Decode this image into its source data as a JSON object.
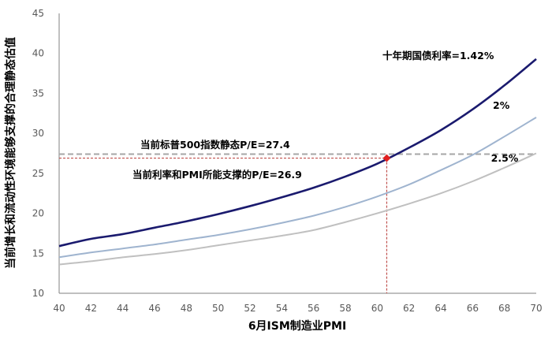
{
  "chart_data": {
    "type": "line",
    "xlabel": "6月ISM制造业PMI",
    "ylabel": "当前增长和流动性环境能够支撑的合理静态估值",
    "xlim": [
      40,
      70
    ],
    "ylim": [
      10,
      45
    ],
    "x_ticks": [
      40,
      42,
      44,
      46,
      48,
      50,
      52,
      54,
      56,
      58,
      60,
      62,
      64,
      66,
      68,
      70
    ],
    "y_ticks": [
      10,
      15,
      20,
      25,
      30,
      35,
      40,
      45
    ],
    "grid": false,
    "series": [
      {
        "name": "十年期国债利率=1.42%",
        "color": "#1a1a6e",
        "x": [
          40,
          42,
          44,
          46,
          48,
          50,
          52,
          54,
          56,
          58,
          60,
          62,
          64,
          66,
          68,
          70
        ],
        "y": [
          15.9,
          16.8,
          17.4,
          18.2,
          19.0,
          19.9,
          20.9,
          22.0,
          23.2,
          24.6,
          26.2,
          28.2,
          30.4,
          33.0,
          36.0,
          39.3
        ]
      },
      {
        "name": "2%",
        "color": "#9fb4cf",
        "x": [
          40,
          42,
          44,
          46,
          48,
          50,
          52,
          54,
          56,
          58,
          60,
          62,
          64,
          66,
          68,
          70
        ],
        "y": [
          14.5,
          15.1,
          15.6,
          16.1,
          16.7,
          17.3,
          18.0,
          18.8,
          19.7,
          20.8,
          22.1,
          23.6,
          25.4,
          27.3,
          29.6,
          32.0
        ]
      },
      {
        "name": "2.5%",
        "color": "#c0c0c0",
        "x": [
          40,
          42,
          44,
          46,
          48,
          50,
          52,
          54,
          56,
          58,
          60,
          62,
          64,
          66,
          68,
          70
        ],
        "y": [
          13.6,
          14.0,
          14.5,
          14.9,
          15.4,
          16.0,
          16.6,
          17.2,
          17.9,
          18.9,
          20.0,
          21.2,
          22.5,
          24.0,
          25.7,
          27.5
        ]
      }
    ],
    "reference_lines": [
      {
        "label": "当前标普500指数静态P/E=27.4",
        "y": 27.4,
        "color": "#a6a6a6"
      },
      {
        "label": "当前利率和PMI所能支撑的P/E=26.9",
        "y": 26.9,
        "x": 60.6,
        "color": "#c0504d"
      }
    ],
    "point": {
      "x": 60.6,
      "y": 26.9,
      "color": "#e02020"
    }
  }
}
